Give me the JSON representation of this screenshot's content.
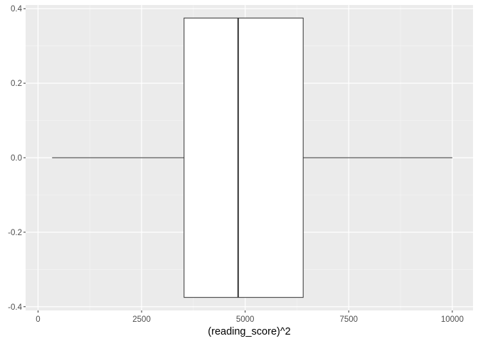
{
  "chart_data": {
    "type": "box",
    "title": "",
    "xlabel": "(reading_score)^2",
    "ylabel": "",
    "xlim": [
      -300,
      10500
    ],
    "ylim": [
      -0.41,
      0.41
    ],
    "x_ticks": [
      0,
      2500,
      5000,
      7500,
      10000
    ],
    "y_ticks": [
      -0.4,
      -0.2,
      0.0,
      0.2,
      0.4
    ],
    "x_tick_labels": [
      "0",
      "2500",
      "5000",
      "7500",
      "10000"
    ],
    "y_tick_labels": [
      "-0.4",
      "-0.2",
      "0.0",
      "0.2",
      "0.4"
    ],
    "grid": true,
    "box": {
      "whisker_low": 340,
      "q1": 3525,
      "median": 4830,
      "q3": 6400,
      "whisker_high": 10000,
      "y_center": 0.0,
      "half_width": 0.375
    },
    "colors": {
      "panel_background": "#ebebeb",
      "grid_major": "#ffffff",
      "grid_minor": "#f5f5f5",
      "box_fill": "#ffffff",
      "box_stroke": "#333333",
      "tick": "#333333",
      "tick_label": "#4d4d4d"
    }
  }
}
